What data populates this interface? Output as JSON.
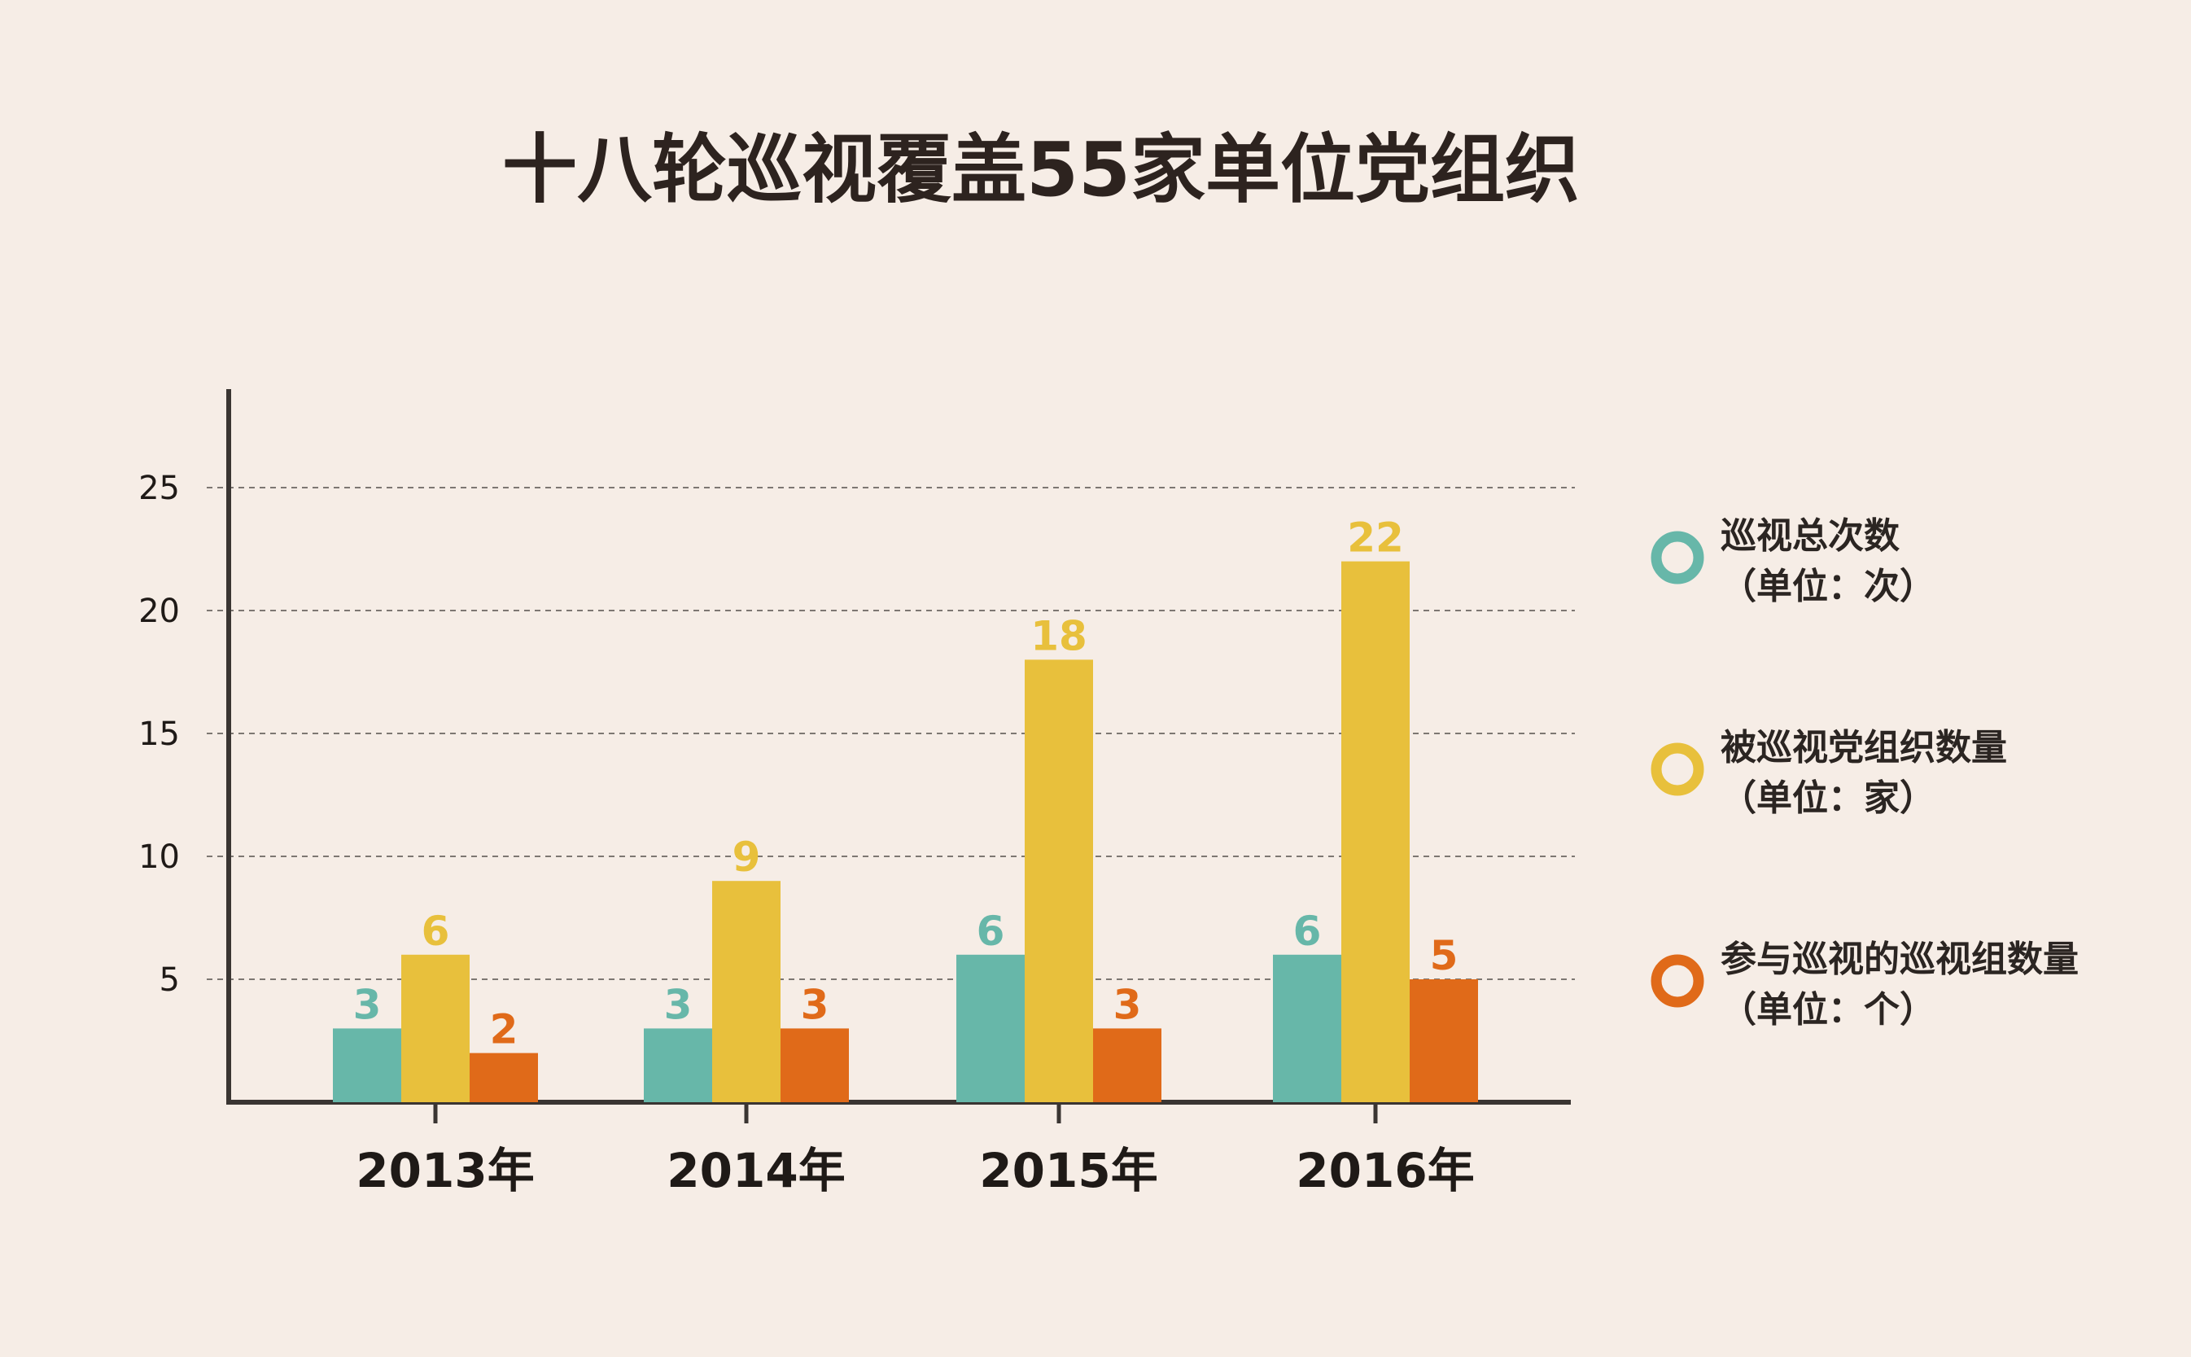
{
  "chart_data": {
    "type": "bar",
    "title": "十八轮巡视覆盖55家单位党组织",
    "categories": [
      "2013年",
      "2014年",
      "2015年",
      "2016年"
    ],
    "series": [
      {
        "name": "巡视总次数",
        "unit": "（单位：次）",
        "color": "#67b7a9",
        "values": [
          3,
          3,
          6,
          6
        ]
      },
      {
        "name": "被巡视党组织数量",
        "unit": "（单位：家）",
        "color": "#e8c03c",
        "values": [
          6,
          9,
          18,
          22
        ]
      },
      {
        "name": "参与巡视的巡视组数量",
        "unit": "（单位：个）",
        "color": "#e06a19",
        "values": [
          2,
          3,
          3,
          5
        ]
      }
    ],
    "y_ticks": [
      5,
      10,
      15,
      20,
      25
    ],
    "ylim": [
      0,
      28
    ],
    "grid": "dashed horizontal",
    "legend_position": "right",
    "background": "#f6ede6"
  }
}
